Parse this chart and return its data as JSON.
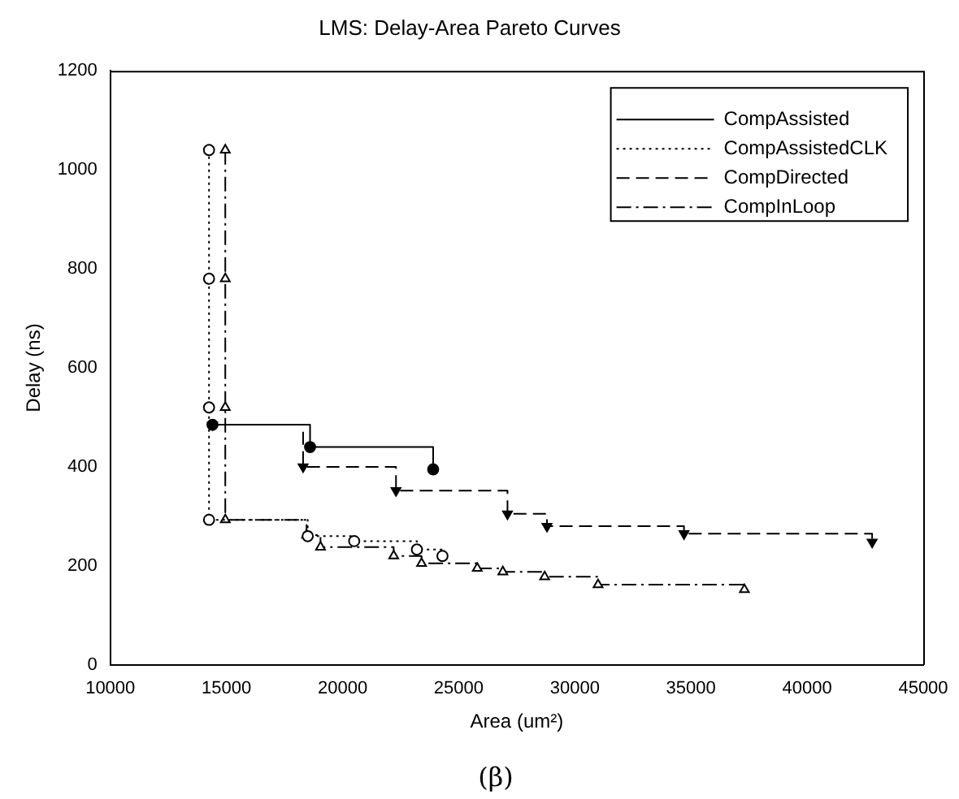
{
  "chart_data": {
    "type": "step",
    "title": "LMS: Delay-Area Pareto Curves",
    "xlabel": "Area (um²)",
    "ylabel": "Delay (ns)",
    "annotations": [
      "(β)"
    ],
    "xlim": [
      10000,
      45000
    ],
    "xticks": [
      10000,
      15000,
      20000,
      25000,
      30000,
      35000,
      40000,
      45000
    ],
    "ylim": [
      0,
      1200
    ],
    "yticks": [
      0,
      200,
      400,
      600,
      800,
      1000,
      1200
    ],
    "grid": false,
    "legend": "top right",
    "series": [
      {
        "name": "CompAssisted",
        "color": "#000000",
        "marker": "circle",
        "line_style": "solid",
        "x": [
          14400,
          18600,
          23900
        ],
        "values": [
          485,
          440,
          395
        ]
      },
      {
        "name": "CompAssistedCLK",
        "color": "#000000",
        "marker": "circle",
        "line_style": "dotted",
        "x": [
          14250,
          14250,
          14250,
          14250,
          18500,
          20500,
          23200,
          24300
        ],
        "values": [
          1040,
          780,
          520,
          293,
          260,
          250,
          233,
          220
        ]
      },
      {
        "name": "CompDirected",
        "color": "#000000",
        "marker": "triangle",
        "line_style": "dashed",
        "x": [
          14400,
          18300,
          22300,
          27100,
          28800,
          34700,
          42800
        ],
        "values": [
          485,
          400,
          352,
          305,
          280,
          265,
          248
        ]
      },
      {
        "name": "CompInLoop",
        "color": "#000000",
        "marker": "triangle",
        "line_style": "dashdot",
        "x": [
          14950,
          14950,
          14950,
          14950,
          18450,
          19050,
          22200,
          23400,
          25800,
          26900,
          28700,
          31000,
          37300
        ],
        "values": [
          1040,
          780,
          520,
          293,
          262,
          238,
          220,
          205,
          195,
          188,
          178,
          162,
          152
        ]
      }
    ]
  }
}
